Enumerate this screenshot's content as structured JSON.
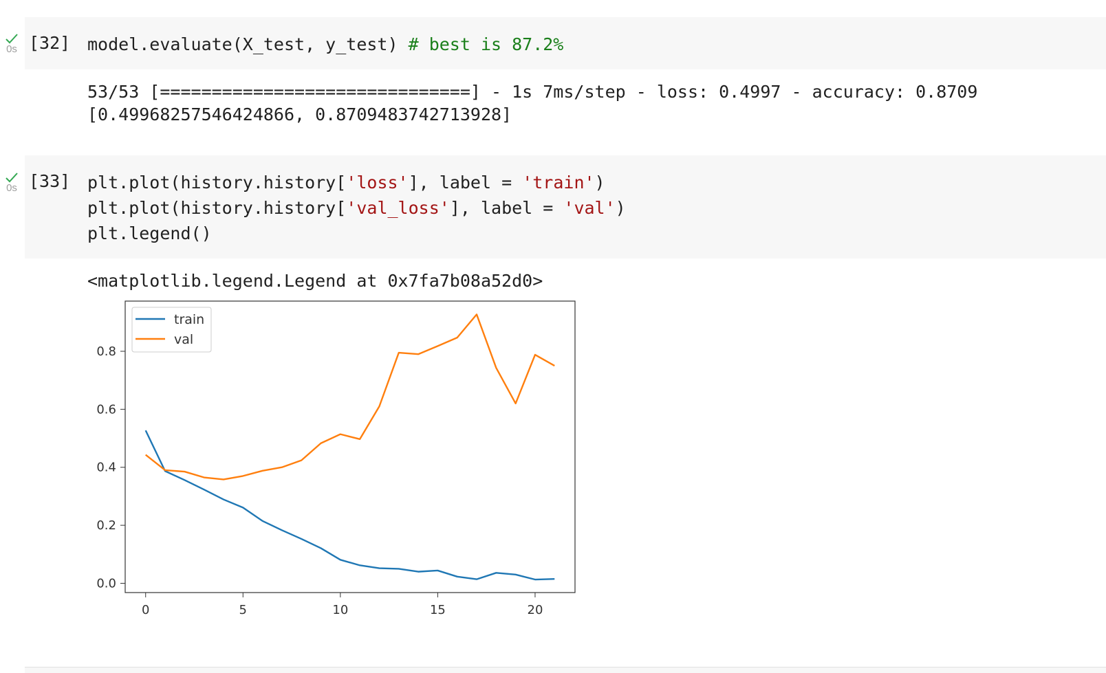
{
  "cells": [
    {
      "exec_count": "[32]",
      "exec_time": "0s",
      "code_lines": [
        [
          {
            "t": "model.evaluate(X_test, y_test) ",
            "c": "plain"
          },
          {
            "t": "# best is 87.2%",
            "c": "comment"
          }
        ]
      ],
      "output_lines": [
        "53/53 [==============================] - 1s 7ms/step - loss: 0.4997 - accuracy: 0.8709",
        "[0.49968257546424866, 0.8709483742713928]"
      ]
    },
    {
      "exec_count": "[33]",
      "exec_time": "0s",
      "code_lines": [
        [
          {
            "t": "plt.plot(history.history[",
            "c": "plain"
          },
          {
            "t": "'loss'",
            "c": "str"
          },
          {
            "t": "], label = ",
            "c": "plain"
          },
          {
            "t": "'train'",
            "c": "str"
          },
          {
            "t": ")",
            "c": "plain"
          }
        ],
        [
          {
            "t": "plt.plot(history.history[",
            "c": "plain"
          },
          {
            "t": "'val_loss'",
            "c": "str"
          },
          {
            "t": "], label = ",
            "c": "plain"
          },
          {
            "t": "'val'",
            "c": "str"
          },
          {
            "t": ")",
            "c": "plain"
          }
        ],
        [
          {
            "t": "plt.legend()",
            "c": "plain"
          }
        ]
      ],
      "output_lines": [
        "<matplotlib.legend.Legend at 0x7fa7b08a52d0>"
      ]
    }
  ],
  "colors": {
    "check": "#34a853",
    "comment": "#1a7f1a",
    "string": "#a31515",
    "train": "#1f77b4",
    "val": "#ff7f0e"
  },
  "chart_data": {
    "type": "line",
    "x": [
      0,
      1,
      2,
      3,
      4,
      5,
      6,
      7,
      8,
      9,
      10,
      11,
      12,
      13,
      14,
      15,
      16,
      17,
      18,
      19,
      20,
      21
    ],
    "series": [
      {
        "name": "train",
        "values": [
          0.527,
          0.387,
          0.356,
          0.323,
          0.289,
          0.261,
          0.215,
          0.183,
          0.153,
          0.121,
          0.081,
          0.062,
          0.052,
          0.05,
          0.04,
          0.044,
          0.023,
          0.014,
          0.036,
          0.03,
          0.013,
          0.015
        ]
      },
      {
        "name": "val",
        "values": [
          0.443,
          0.39,
          0.385,
          0.365,
          0.358,
          0.37,
          0.388,
          0.4,
          0.424,
          0.483,
          0.514,
          0.497,
          0.61,
          0.795,
          0.79,
          0.818,
          0.847,
          0.927,
          0.743,
          0.62,
          0.788,
          0.75
        ]
      }
    ],
    "xlim": [
      -1.05,
      22.05
    ],
    "ylim": [
      -0.032,
      0.973
    ],
    "xticks": [
      0,
      5,
      10,
      15,
      20
    ],
    "yticks": [
      0.0,
      0.2,
      0.4,
      0.6,
      0.8
    ],
    "ytick_labels": [
      "0.0",
      "0.2",
      "0.4",
      "0.6",
      "0.8"
    ],
    "title": "",
    "xlabel": "",
    "ylabel": "",
    "legend_loc": "upper left",
    "grid": false
  }
}
